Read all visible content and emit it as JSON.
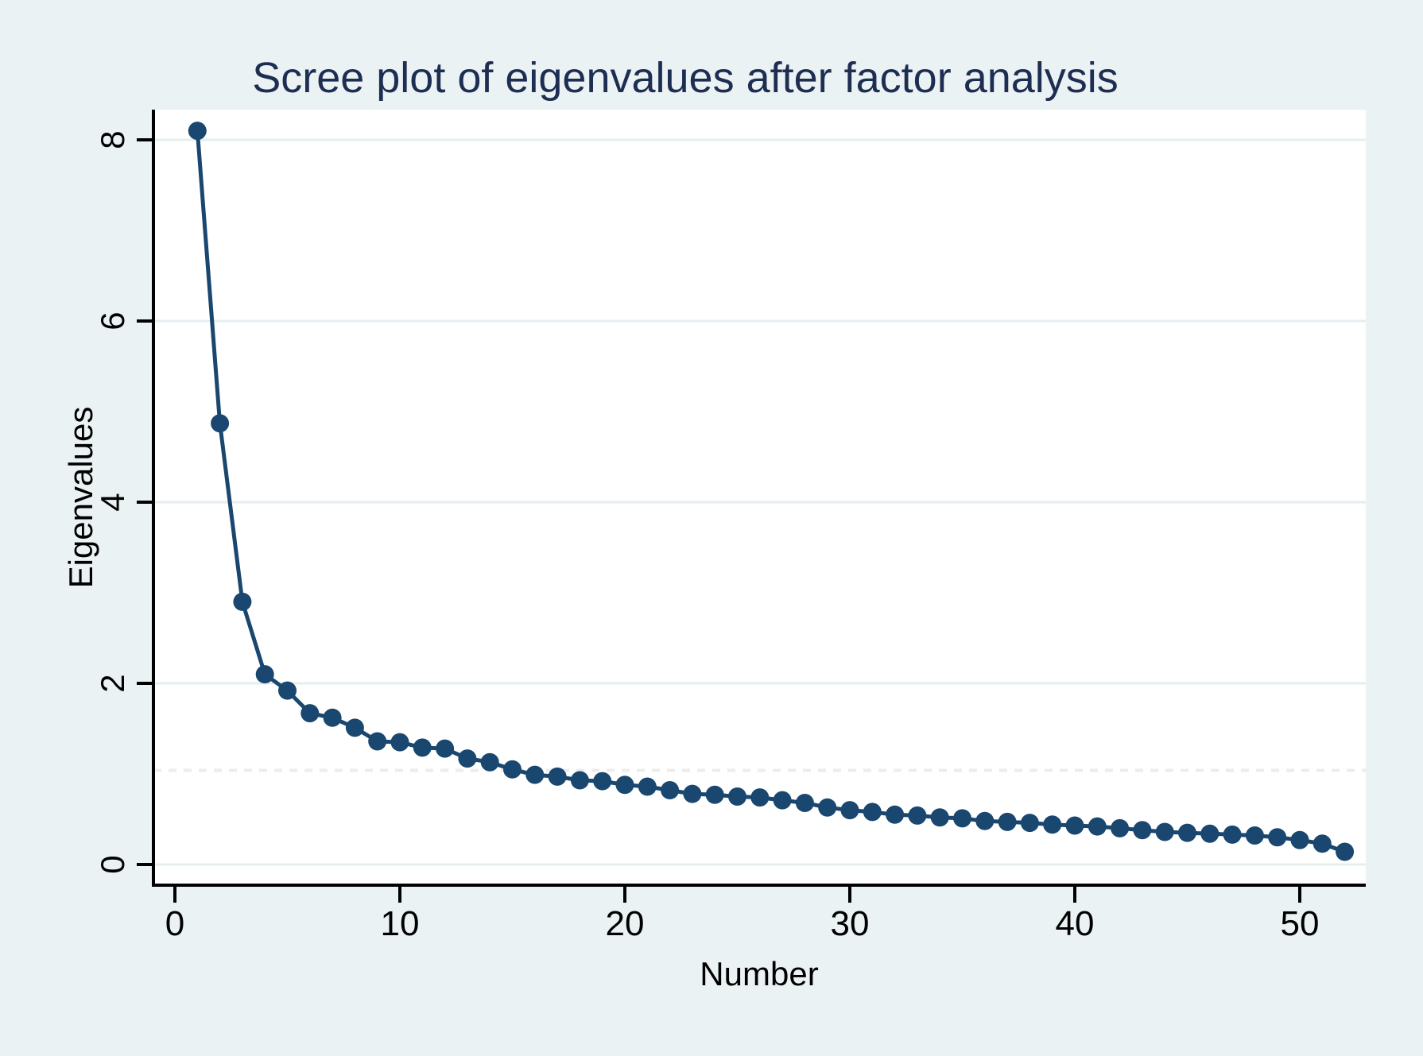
{
  "chart_data": {
    "type": "line",
    "title": "Scree plot of eigenvalues after factor analysis",
    "xlabel": "Number",
    "ylabel": "Eigenvalues",
    "x": [
      1,
      2,
      3,
      4,
      5,
      6,
      7,
      8,
      9,
      10,
      11,
      12,
      13,
      14,
      15,
      16,
      17,
      18,
      19,
      20,
      21,
      22,
      23,
      24,
      25,
      26,
      27,
      28,
      29,
      30,
      31,
      32,
      33,
      34,
      35,
      36,
      37,
      38,
      39,
      40,
      41,
      42,
      43,
      44,
      45,
      46,
      47,
      48,
      49,
      50,
      51,
      52
    ],
    "series": [
      {
        "name": "Eigenvalues",
        "values": [
          8.1,
          4.87,
          2.9,
          2.1,
          1.92,
          1.67,
          1.62,
          1.51,
          1.36,
          1.35,
          1.29,
          1.28,
          1.17,
          1.13,
          1.05,
          0.99,
          0.97,
          0.93,
          0.92,
          0.88,
          0.86,
          0.82,
          0.78,
          0.77,
          0.75,
          0.74,
          0.71,
          0.68,
          0.63,
          0.6,
          0.58,
          0.55,
          0.54,
          0.52,
          0.51,
          0.48,
          0.47,
          0.46,
          0.44,
          0.43,
          0.42,
          0.4,
          0.38,
          0.36,
          0.35,
          0.34,
          0.33,
          0.32,
          0.3,
          0.27,
          0.23,
          0.14
        ]
      }
    ],
    "reference_line": {
      "value": 1.04,
      "style": "dashed",
      "meaning": "mean eigenvalue"
    },
    "x_ticks": [
      0,
      10,
      20,
      30,
      40,
      50
    ],
    "y_ticks": [
      0,
      2,
      4,
      6,
      8
    ],
    "xlim": [
      -0.95,
      52.9
    ],
    "ylim": [
      -0.23,
      8.33
    ],
    "grid": true,
    "legend": "none",
    "marker": "filled-circle",
    "colors": {
      "marker_line": "#1A476F",
      "background": "#EAF2F3",
      "plot_background": "#FFFFFF",
      "gridline": "#E6EEF1",
      "reference_line": "#ECECEC",
      "axis": "#000000",
      "tick_label": "#000000",
      "title": "#1E2D52"
    }
  }
}
